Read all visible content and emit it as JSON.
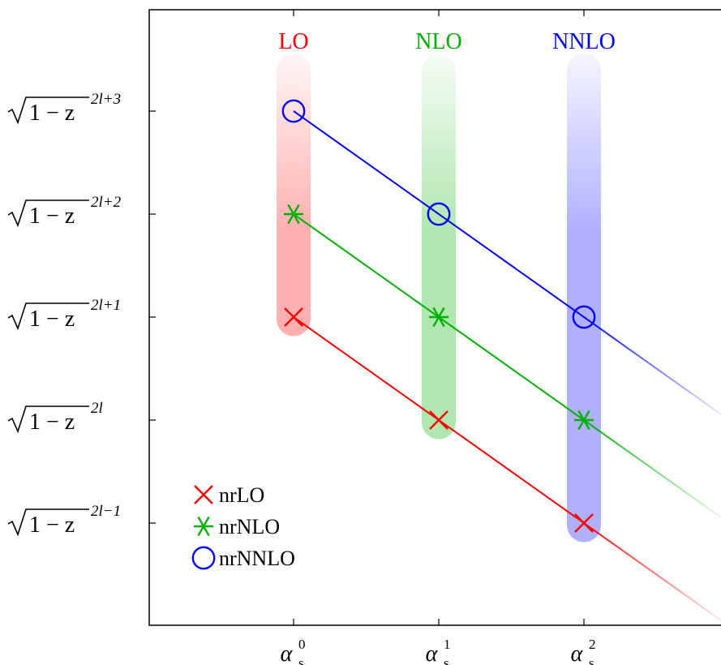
{
  "chart_data": {
    "type": "scatter",
    "x_ticks": [
      {
        "pos": 0,
        "base": "α",
        "sub": "s",
        "sup": "0"
      },
      {
        "pos": 1,
        "base": "α",
        "sub": "s",
        "sup": "1"
      },
      {
        "pos": 2,
        "base": "α",
        "sub": "s",
        "sup": "2"
      }
    ],
    "y_ticks": [
      {
        "pos": 3,
        "expr": "1 − z",
        "exp": "2l+3"
      },
      {
        "pos": 2,
        "expr": "1 − z",
        "exp": "2l+2"
      },
      {
        "pos": 1,
        "expr": "1 − z",
        "exp": "2l+1"
      },
      {
        "pos": 0,
        "expr": "1 − z",
        "exp": "2l"
      },
      {
        "pos": -1,
        "expr": "1 − z",
        "exp": "2l−1"
      }
    ],
    "xlim": [
      -1,
      2.95
    ],
    "ylim": [
      -2,
      4
    ],
    "bands": [
      {
        "label": "LO",
        "x": 0,
        "y_from": 0.98,
        "color": "#ff0000"
      },
      {
        "label": "NLO",
        "x": 1,
        "y_from": -0.02,
        "color": "#00b000"
      },
      {
        "label": "NNLO",
        "x": 2,
        "y_from": -1.02,
        "color": "#0000ff"
      }
    ],
    "series": [
      {
        "name": "nrLO",
        "marker": "x",
        "color": "#ff0000",
        "points": [
          [
            0,
            1
          ],
          [
            1,
            0
          ],
          [
            2,
            -1
          ]
        ]
      },
      {
        "name": "nrNLO",
        "marker": "star",
        "color": "#00b000",
        "points": [
          [
            0,
            2
          ],
          [
            1,
            1
          ],
          [
            2,
            0
          ]
        ]
      },
      {
        "name": "nrNNLO",
        "marker": "circle",
        "color": "#0000ff",
        "points": [
          [
            0,
            3
          ],
          [
            1,
            2
          ],
          [
            2,
            1
          ]
        ]
      }
    ],
    "legend_position": "bottom-left",
    "grid": false
  }
}
